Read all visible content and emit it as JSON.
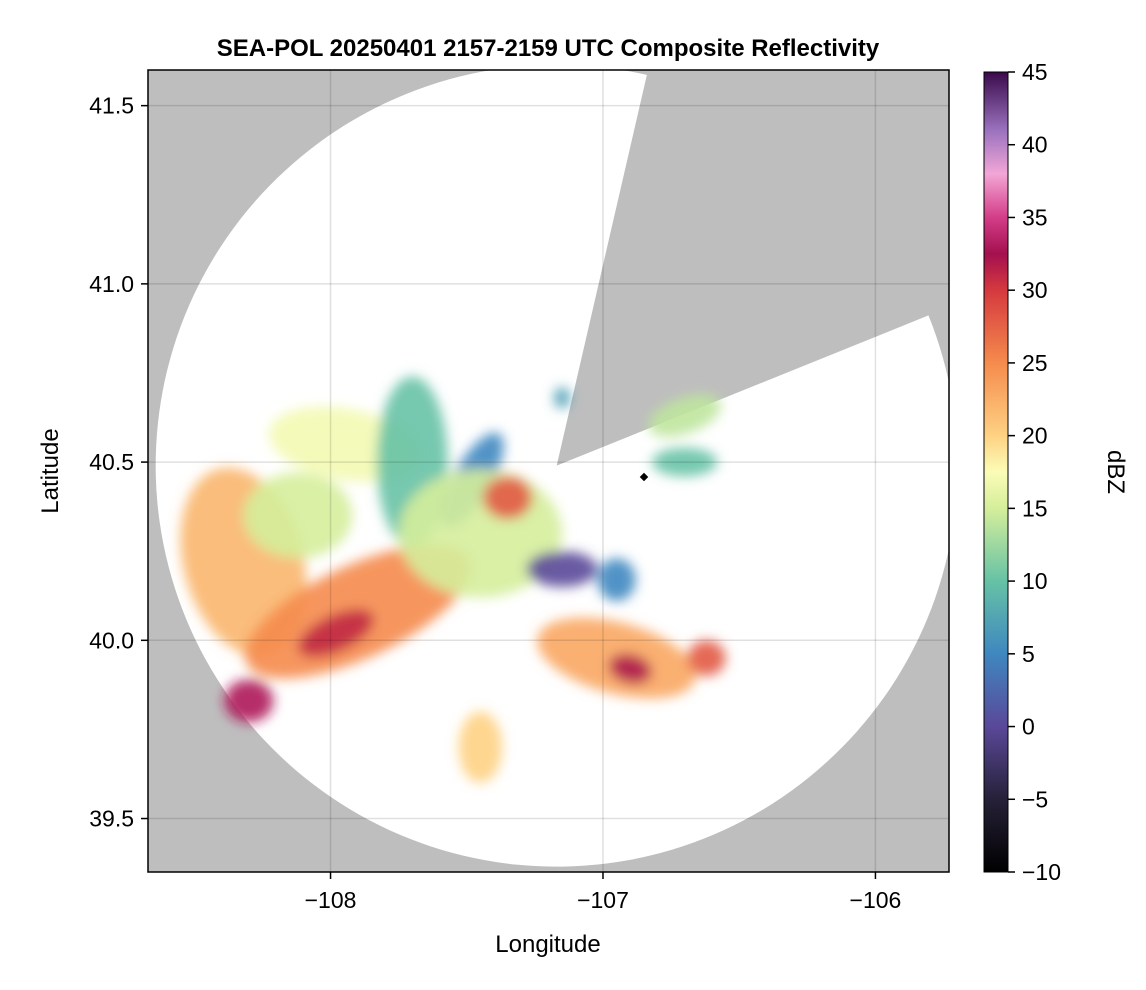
{
  "chart_data": {
    "type": "heatmap",
    "title": "SEA-POL 20250401 2157-2159 UTC Composite Reflectivity",
    "xlabel": "Longitude",
    "ylabel": "Latitude",
    "xlim": [
      -108.67,
      -105.73
    ],
    "ylim": [
      39.35,
      41.6
    ],
    "x_ticks": [
      -108,
      -107,
      -106
    ],
    "x_tick_labels": [
      "−108",
      "−107",
      "−106"
    ],
    "y_ticks": [
      39.5,
      40.0,
      40.5,
      41.0,
      41.5
    ],
    "y_tick_labels": [
      "39.5",
      "40.0",
      "40.5",
      "41.0",
      "41.5"
    ],
    "grid": true,
    "background_color": "#bebebe",
    "radar": {
      "center_lon": -107.17,
      "center_lat": 40.49,
      "range_deg": 1.125,
      "blocked_sectors_bearing_deg": [
        [
          13,
          68
        ]
      ]
    },
    "colorbar": {
      "label": "dBZ",
      "min": -10,
      "max": 45,
      "ticks": [
        -10,
        -5,
        0,
        5,
        10,
        15,
        20,
        25,
        30,
        35,
        40,
        45
      ],
      "tick_labels": [
        "−10",
        "−5",
        "0",
        "5",
        "10",
        "15",
        "20",
        "25",
        "30",
        "35",
        "40",
        "45"
      ],
      "colormap": "spectral-extended",
      "color_stops": [
        {
          "value": -10,
          "color": "#000000"
        },
        {
          "value": -5,
          "color": "#262138"
        },
        {
          "value": 0,
          "color": "#5a4899"
        },
        {
          "value": 5,
          "color": "#3f87c0"
        },
        {
          "value": 10,
          "color": "#66c2a5"
        },
        {
          "value": 15,
          "color": "#d5ee9b"
        },
        {
          "value": 17.5,
          "color": "#fbfcb7"
        },
        {
          "value": 20,
          "color": "#fed283"
        },
        {
          "value": 25,
          "color": "#f58b4d"
        },
        {
          "value": 30,
          "color": "#d5393e"
        },
        {
          "value": 32.5,
          "color": "#a4104f"
        },
        {
          "value": 35,
          "color": "#d43d88"
        },
        {
          "value": 38,
          "color": "#f2a6d6"
        },
        {
          "value": 41,
          "color": "#9a72be"
        },
        {
          "value": 45,
          "color": "#3a0a4b"
        }
      ]
    },
    "echo_regions": [
      {
        "name": "west-stratiform",
        "lon": -108.32,
        "lat": 40.22,
        "rx": 0.22,
        "ry": 0.27,
        "rot": 15,
        "dbz": 22
      },
      {
        "name": "western-band",
        "lon": -107.9,
        "lat": 40.08,
        "rx": 0.45,
        "ry": 0.13,
        "rot": 25,
        "dbz": 25
      },
      {
        "name": "western-core",
        "lon": -107.98,
        "lat": 40.02,
        "rx": 0.15,
        "ry": 0.05,
        "rot": 25,
        "dbz": 31
      },
      {
        "name": "light-west",
        "lon": -108.12,
        "lat": 40.35,
        "rx": 0.2,
        "ry": 0.12,
        "rot": 0,
        "dbz": 15
      },
      {
        "name": "north-light-band",
        "lon": -107.95,
        "lat": 40.55,
        "rx": 0.28,
        "ry": 0.1,
        "rot": -10,
        "dbz": 17
      },
      {
        "name": "far-west-cells",
        "lon": -108.3,
        "lat": 39.83,
        "rx": 0.09,
        "ry": 0.06,
        "rot": 0,
        "dbz": 33
      },
      {
        "name": "central-green",
        "lon": -107.7,
        "lat": 40.5,
        "rx": 0.13,
        "ry": 0.24,
        "rot": 0,
        "dbz": 10
      },
      {
        "name": "central-blue",
        "lon": -107.48,
        "lat": 40.45,
        "rx": 0.07,
        "ry": 0.15,
        "rot": -30,
        "dbz": 5
      },
      {
        "name": "central-light",
        "lon": -107.45,
        "lat": 40.3,
        "rx": 0.3,
        "ry": 0.18,
        "rot": 0,
        "dbz": 15
      },
      {
        "name": "central-red",
        "lon": -107.35,
        "lat": 40.4,
        "rx": 0.09,
        "ry": 0.06,
        "rot": 0,
        "dbz": 28
      },
      {
        "name": "central-purple",
        "lon": -107.15,
        "lat": 40.2,
        "rx": 0.13,
        "ry": 0.05,
        "rot": 0,
        "dbz": 0
      },
      {
        "name": "central-blue-east",
        "lon": -106.95,
        "lat": 40.17,
        "rx": 0.07,
        "ry": 0.06,
        "rot": 0,
        "dbz": 5
      },
      {
        "name": "southeast-band",
        "lon": -106.95,
        "lat": 39.95,
        "rx": 0.3,
        "ry": 0.1,
        "rot": -15,
        "dbz": 23
      },
      {
        "name": "southeast-core",
        "lon": -106.9,
        "lat": 39.92,
        "rx": 0.08,
        "ry": 0.04,
        "rot": -15,
        "dbz": 32
      },
      {
        "name": "east-cell",
        "lon": -106.62,
        "lat": 39.95,
        "rx": 0.07,
        "ry": 0.05,
        "rot": 0,
        "dbz": 28
      },
      {
        "name": "south-scatter",
        "lon": -107.45,
        "lat": 39.7,
        "rx": 0.08,
        "ry": 0.1,
        "rot": 0,
        "dbz": 20
      },
      {
        "name": "northeast-green",
        "lon": -106.7,
        "lat": 40.5,
        "rx": 0.12,
        "ry": 0.04,
        "rot": 0,
        "dbz": 10
      },
      {
        "name": "northeast-band",
        "lon": -106.7,
        "lat": 40.63,
        "rx": 0.14,
        "ry": 0.05,
        "rot": 20,
        "dbz": 14
      },
      {
        "name": "north-blue-cell",
        "lon": -107.15,
        "lat": 40.68,
        "rx": 0.03,
        "ry": 0.03,
        "rot": 0,
        "dbz": 7
      }
    ]
  }
}
